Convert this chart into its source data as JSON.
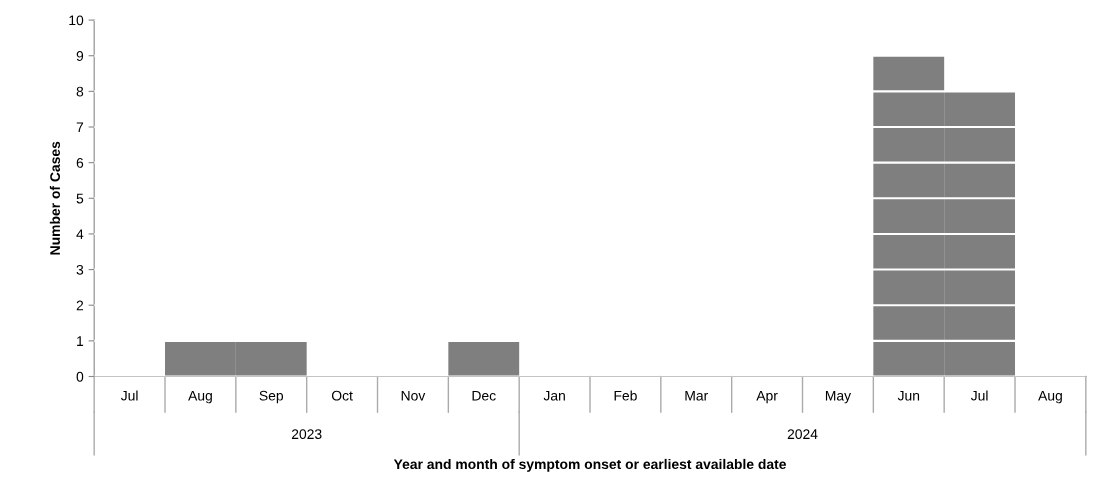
{
  "chart_data": {
    "type": "bar",
    "xlabel": "Year and month of symptom onset or earliest available date",
    "ylabel": "Number of Cases",
    "categories": [
      "Jul",
      "Aug",
      "Sep",
      "Oct",
      "Nov",
      "Dec",
      "Jan",
      "Feb",
      "Mar",
      "Apr",
      "May",
      "Jun",
      "Jul",
      "Aug"
    ],
    "values": [
      0,
      1,
      1,
      0,
      0,
      1,
      0,
      0,
      0,
      0,
      0,
      9,
      8,
      0
    ],
    "color": "#7f7f7f",
    "ylim": [
      0,
      10
    ],
    "yticks": [
      0,
      1,
      2,
      3,
      4,
      5,
      6,
      7,
      8,
      9,
      10
    ],
    "grid": "y",
    "annotations": [
      "2023",
      "2024"
    ]
  }
}
